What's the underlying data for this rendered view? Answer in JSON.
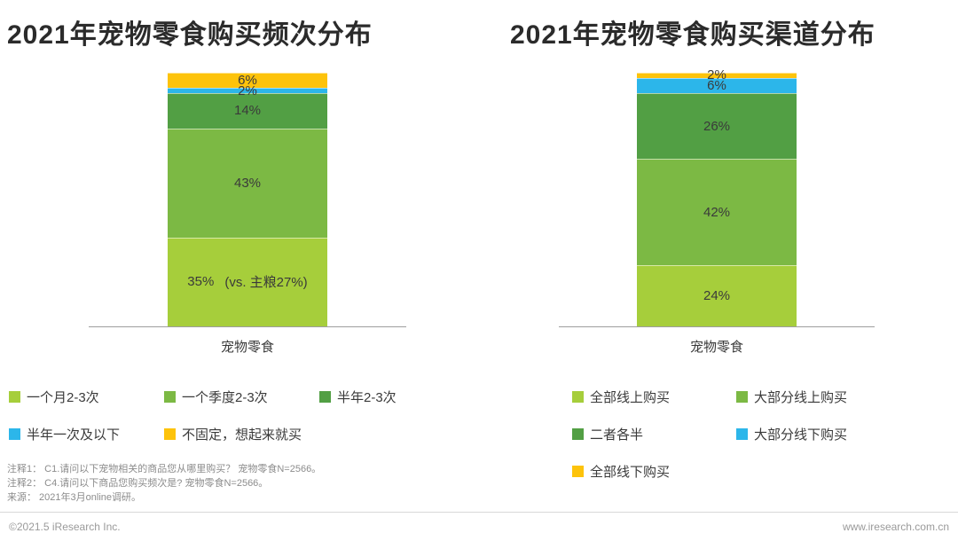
{
  "page": {
    "notes": [
      "注释1： C1.请问以下宠物相关的商品您从哪里购买？ 宠物零食N=2566。",
      "注释2： C4.请问以下商品您购买频次是? 宠物零食N=2566。",
      "来源： 2021年3月online调研。"
    ],
    "footer_left": "©2021.5 iResearch Inc.",
    "footer_right": "www.iresearch.com.cn"
  },
  "colors": {
    "light_green": "#a6ce3b",
    "medium_green": "#7cb944",
    "dark_green": "#529f44",
    "blue": "#2cb6ea",
    "yellow": "#fdc30b",
    "axis_gray": "#9e9e9e",
    "text_dark": "#3a3a3a"
  },
  "chart_data": [
    {
      "type": "bar",
      "stacked": true,
      "title": "2021年宠物零食购买频次分布",
      "category": "宠物零食",
      "ylim": [
        0,
        100
      ],
      "legend_position": "bottom",
      "legend_columns": 3,
      "series": [
        {
          "name": "一个月2-3次",
          "value": 35,
          "label": "35%",
          "annotation": "(vs. 主粮27%)",
          "color": "#a6ce3b"
        },
        {
          "name": "一个季度2-3次",
          "value": 43,
          "label": "43%",
          "color": "#7cb944"
        },
        {
          "name": "半年2-3次",
          "value": 14,
          "label": "14%",
          "color": "#529f44"
        },
        {
          "name": "半年一次及以下",
          "value": 2,
          "label": "2%",
          "color": "#2cb6ea"
        },
        {
          "name": "不固定，想起来就买",
          "value": 6,
          "label": "6%",
          "color": "#fdc30b"
        }
      ]
    },
    {
      "type": "bar",
      "stacked": true,
      "title": "2021年宠物零食购买渠道分布",
      "category": "宠物零食",
      "ylim": [
        0,
        100
      ],
      "legend_position": "bottom",
      "legend_columns": 2,
      "series": [
        {
          "name": "全部线上购买",
          "value": 24,
          "label": "24%",
          "color": "#a6ce3b"
        },
        {
          "name": "大部分线上购买",
          "value": 42,
          "label": "42%",
          "color": "#7cb944"
        },
        {
          "name": "二者各半",
          "value": 26,
          "label": "26%",
          "color": "#529f44"
        },
        {
          "name": "大部分线下购买",
          "value": 6,
          "label": "6%",
          "color": "#2cb6ea"
        },
        {
          "name": "全部线下购买",
          "value": 2,
          "label": "2%",
          "color": "#fdc30b"
        }
      ]
    }
  ]
}
